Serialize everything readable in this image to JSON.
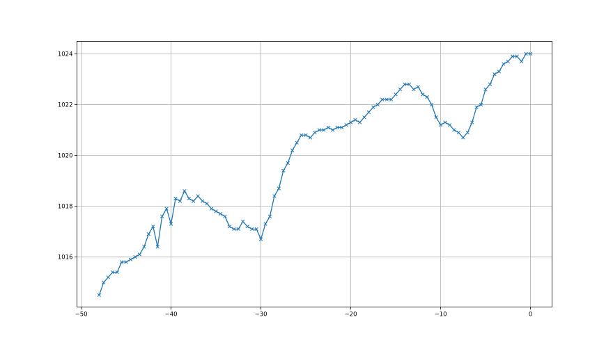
{
  "chart_data": {
    "type": "line",
    "title": "",
    "xlabel": "",
    "ylabel": "",
    "xlim": [
      -50.47,
      2.4
    ],
    "ylim": [
      1014.03,
      1024.49
    ],
    "xticks": [
      -50,
      -40,
      -30,
      -20,
      -10,
      0
    ],
    "yticks": [
      1016,
      1018,
      1020,
      1022,
      1024
    ],
    "grid": true,
    "marker": "x",
    "color": "#1f77b4",
    "x_start": -48,
    "x_step": 0.5,
    "values": [
      1014.5,
      1015.0,
      1015.2,
      1015.4,
      1015.4,
      1015.8,
      1015.8,
      1015.9,
      1016.0,
      1016.1,
      1016.4,
      1016.9,
      1017.2,
      1016.4,
      1017.6,
      1017.9,
      1017.3,
      1018.3,
      1018.2,
      1018.6,
      1018.3,
      1018.2,
      1018.4,
      1018.2,
      1018.1,
      1017.9,
      1017.8,
      1017.7,
      1017.6,
      1017.2,
      1017.1,
      1017.1,
      1017.4,
      1017.2,
      1017.1,
      1017.1,
      1016.7,
      1017.3,
      1017.6,
      1018.4,
      1018.7,
      1019.4,
      1019.7,
      1020.2,
      1020.5,
      1020.8,
      1020.8,
      1020.7,
      1020.9,
      1021.0,
      1021.0,
      1021.1,
      1021.0,
      1021.1,
      1021.1,
      1021.2,
      1021.3,
      1021.4,
      1021.3,
      1021.5,
      1021.7,
      1021.9,
      1022.0,
      1022.2,
      1022.2,
      1022.2,
      1022.4,
      1022.6,
      1022.8,
      1022.8,
      1022.6,
      1022.7,
      1022.4,
      1022.3,
      1022.0,
      1021.5,
      1021.2,
      1021.3,
      1021.2,
      1021.0,
      1020.9,
      1020.7,
      1020.9,
      1021.3,
      1021.9,
      1022.0,
      1022.6,
      1022.8,
      1023.2,
      1023.3,
      1023.6,
      1023.7,
      1023.9,
      1023.9,
      1023.7,
      1024.0,
      1024.0
    ]
  }
}
